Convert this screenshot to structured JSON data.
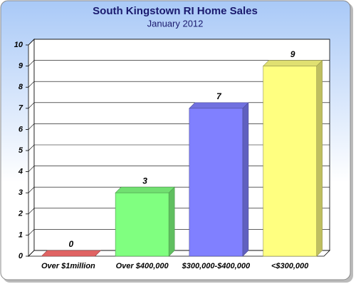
{
  "chart_data": {
    "type": "bar3d",
    "title": "South Kingstown RI Home Sales",
    "subtitle": "January 2012",
    "categories": [
      "Over $1million",
      "Over $400,000",
      "$300,000-$400,000",
      "<$300,000"
    ],
    "values": [
      0,
      3,
      7,
      9
    ],
    "colors": [
      "#ff7070",
      "#80ff80",
      "#8080ff",
      "#ffff80"
    ],
    "ylim": [
      0,
      10
    ],
    "yticks": [
      0,
      1,
      2,
      3,
      4,
      5,
      6,
      7,
      8,
      9,
      10
    ],
    "grid": true
  }
}
